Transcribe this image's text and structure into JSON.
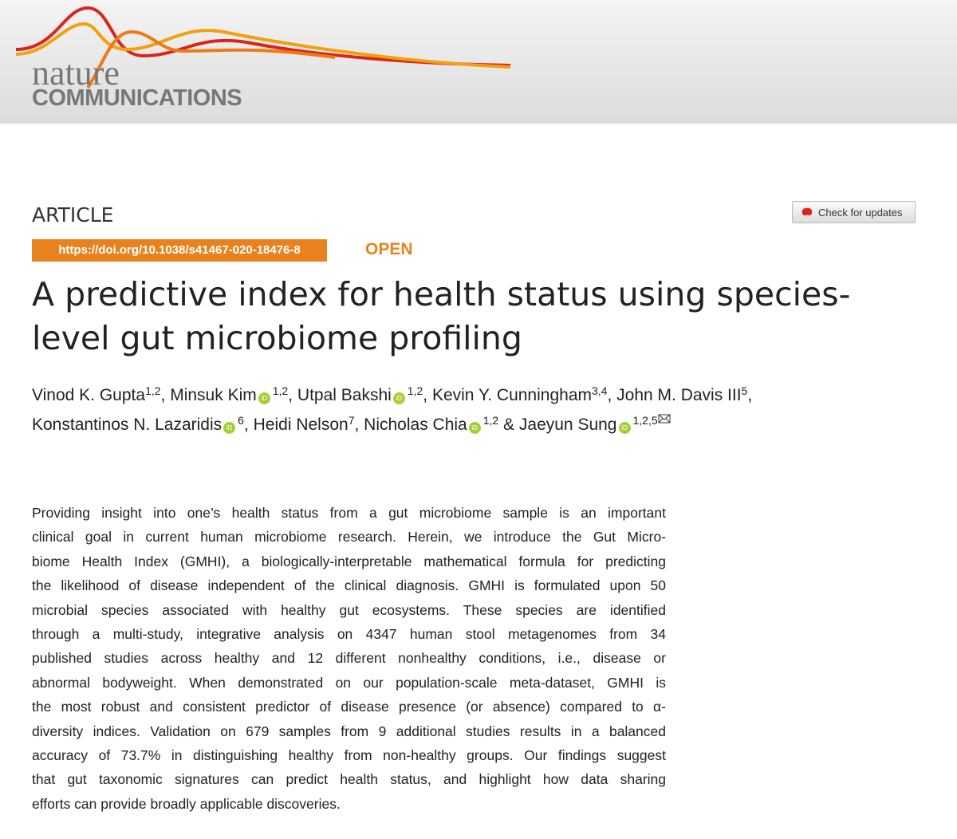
{
  "header": {
    "logo_top": "nature",
    "logo_bottom": "COMMUNICATIONS"
  },
  "article_type": "ARTICLE",
  "check_updates": "Check for updates",
  "doi": "https://doi.org/10.1038/s41467-020-18476-8",
  "access": "OPEN",
  "title": {
    "lines": [
      "A predictive index for health status using species-",
      "level gut microbiome profiling"
    ]
  },
  "authors": {
    "lines": [
      [
        {
          "name": "Vinod K. Gupta",
          "affiliations": "1,2",
          "orcid": false,
          "after": ","
        },
        {
          "name": "Minsuk Kim",
          "affiliations": "1,2",
          "orcid": true,
          "after": ","
        },
        {
          "name": "Utpal Bakshi",
          "affiliations": "1,2",
          "orcid": true,
          "after": ","
        },
        {
          "name": "Kevin Y. Cunningham",
          "affiliations": "3,4",
          "orcid": false,
          "after": ","
        },
        {
          "name": "John M. Davis III",
          "affiliations": "5",
          "orcid": false,
          "after": ","
        }
      ],
      [
        {
          "name": "Konstantinos N. Lazaridis",
          "affiliations": "6",
          "orcid": true,
          "after": ","
        },
        {
          "name": "Heidi Nelson",
          "affiliations": "7",
          "orcid": false,
          "after": ","
        },
        {
          "name": "Nicholas Chia",
          "affiliations": "1,2",
          "orcid": true,
          "after": " &"
        },
        {
          "name": "Jaeyun Sung",
          "affiliations": "1,2,5",
          "orcid": true,
          "email": true
        }
      ]
    ]
  },
  "abstract": {
    "lines": [
      "Providing insight into one’s health status from a gut microbiome sample is an important",
      "clinical goal in current human microbiome research. Herein, we introduce the Gut Micro-",
      "biome Health Index (GMHI), a biologically-interpretable mathematical formula for predicting",
      "the likelihood of disease independent of the clinical diagnosis. GMHI is formulated upon 50",
      "microbial species associated with healthy gut ecosystems. These species are identified",
      "through a multi-study, integrative analysis on 4347 human stool metagenomes from 34",
      "published studies across healthy and 12 different nonhealthy conditions, i.e., disease or",
      "abnormal bodyweight. When demonstrated on our population-scale meta-dataset, GMHI is",
      "the most robust and consistent predictor of disease presence (or absence) compared to α-",
      "diversity indices. Validation on 679 samples from 9 additional studies results in a balanced",
      "accuracy of 73.7% in distinguishing healthy from non-healthy groups. Our findings suggest",
      "that gut taxonomic signatures can predict health status, and highlight how data sharing",
      "efforts can provide broadly applicable discoveries."
    ]
  }
}
